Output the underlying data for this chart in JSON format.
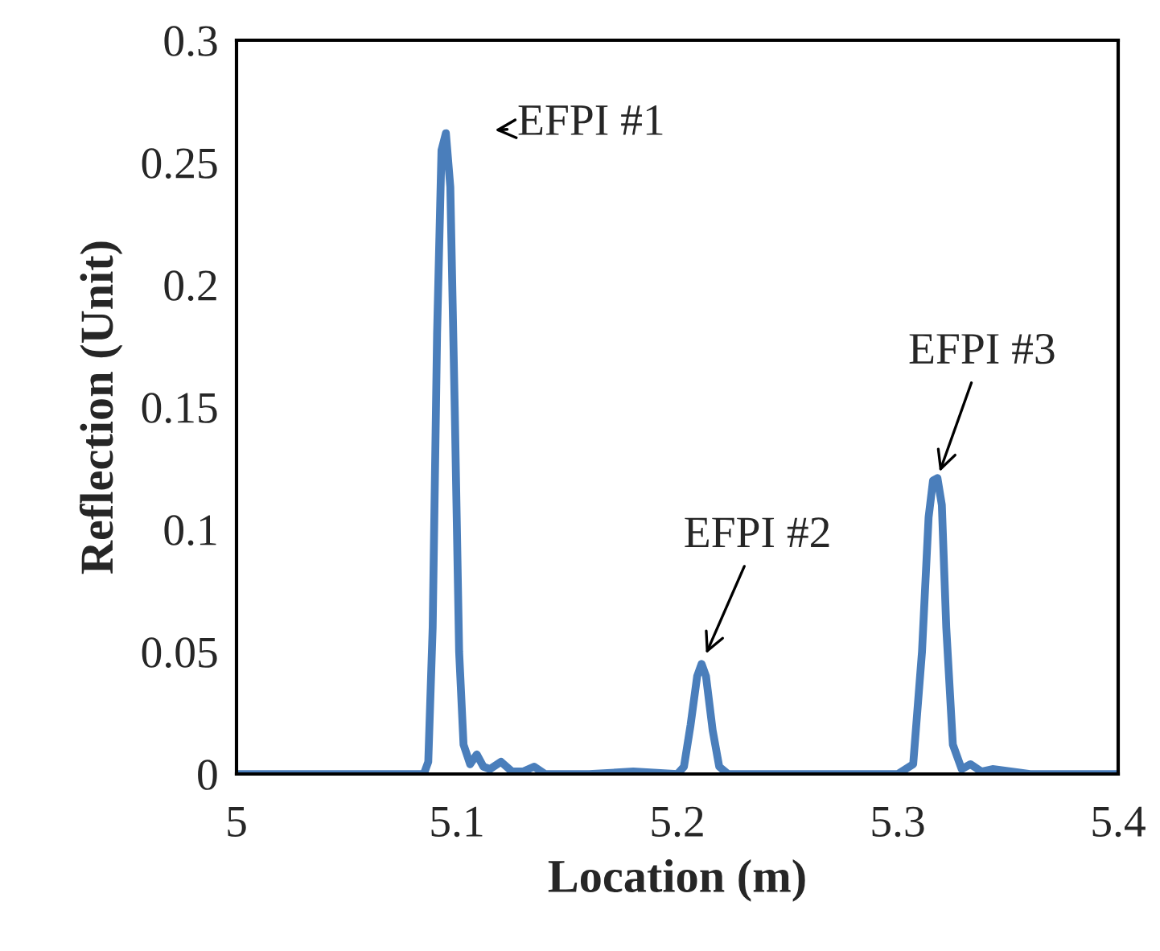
{
  "chart_data": {
    "type": "line",
    "xlabel": "Location (m)",
    "ylabel": "Reflection (Unit)",
    "series": [
      {
        "color": "#4a7ebb",
        "x": [
          5.0,
          5.02,
          5.04,
          5.06,
          5.08,
          5.085,
          5.087,
          5.089,
          5.091,
          5.093,
          5.095,
          5.097,
          5.099,
          5.101,
          5.103,
          5.106,
          5.109,
          5.112,
          5.115,
          5.12,
          5.125,
          5.13,
          5.135,
          5.14,
          5.16,
          5.18,
          5.2,
          5.203,
          5.206,
          5.209,
          5.211,
          5.213,
          5.216,
          5.219,
          5.223,
          5.25,
          5.28,
          5.3,
          5.307,
          5.311,
          5.314,
          5.316,
          5.318,
          5.32,
          5.322,
          5.325,
          5.329,
          5.333,
          5.338,
          5.343,
          5.36,
          5.38,
          5.4
        ],
        "values": [
          0.0,
          0.0,
          0.0,
          0.0,
          0.0,
          0.0,
          0.005,
          0.06,
          0.18,
          0.255,
          0.262,
          0.24,
          0.15,
          0.05,
          0.012,
          0.004,
          0.008,
          0.003,
          0.002,
          0.005,
          0.001,
          0.001,
          0.003,
          0.0,
          0.0,
          0.001,
          0.0,
          0.003,
          0.02,
          0.04,
          0.045,
          0.04,
          0.018,
          0.003,
          0.0,
          0.0,
          0.0,
          0.0,
          0.004,
          0.05,
          0.105,
          0.12,
          0.121,
          0.11,
          0.06,
          0.012,
          0.002,
          0.004,
          0.001,
          0.002,
          0.0,
          0.0,
          0.0
        ]
      }
    ],
    "xlim": [
      5,
      5.4
    ],
    "xticks": [
      5,
      5.1,
      5.2,
      5.3,
      5.4
    ],
    "ylim": [
      0,
      0.3
    ],
    "yticks": [
      0,
      0.05,
      0.1,
      0.15,
      0.2,
      0.25,
      0.3
    ],
    "grid": false,
    "marker": "none",
    "line_style": "solid",
    "annotations": [
      {
        "text": "EFPI #1",
        "x": 5.095,
        "y": 0.262
      },
      {
        "text": "EFPI #2",
        "x": 5.211,
        "y": 0.045
      },
      {
        "text": "EFPI #3",
        "x": 5.318,
        "y": 0.121
      }
    ]
  }
}
